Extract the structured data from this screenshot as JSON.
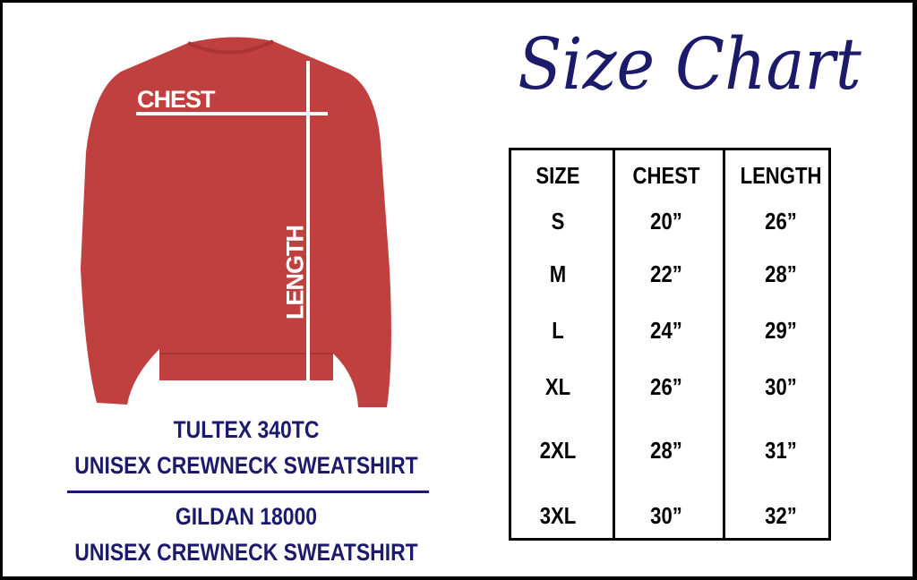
{
  "title": "Size Chart",
  "colors": {
    "navy": "#1c1a6b",
    "shirt": "#c0403f"
  },
  "garment_labels": {
    "chest": "CHEST",
    "length": "LENGTH"
  },
  "products": [
    {
      "line1": "TULTEX 340TC",
      "line2": "UNISEX CREWNECK SWEATSHIRT"
    },
    {
      "line1": "GILDAN 18000",
      "line2": "UNISEX CREWNECK SWEATSHIRT"
    }
  ],
  "table": {
    "headers": [
      "SIZE",
      "CHEST",
      "LENGTH"
    ],
    "rows": [
      [
        "S",
        "20”",
        "26”"
      ],
      [
        "M",
        "22”",
        "28”"
      ],
      [
        "L",
        "24”",
        "29”"
      ],
      [
        "XL",
        "26”",
        "30”"
      ],
      [
        "2XL",
        "28”",
        "31”"
      ],
      [
        "3XL",
        "30”",
        "32”"
      ]
    ]
  }
}
